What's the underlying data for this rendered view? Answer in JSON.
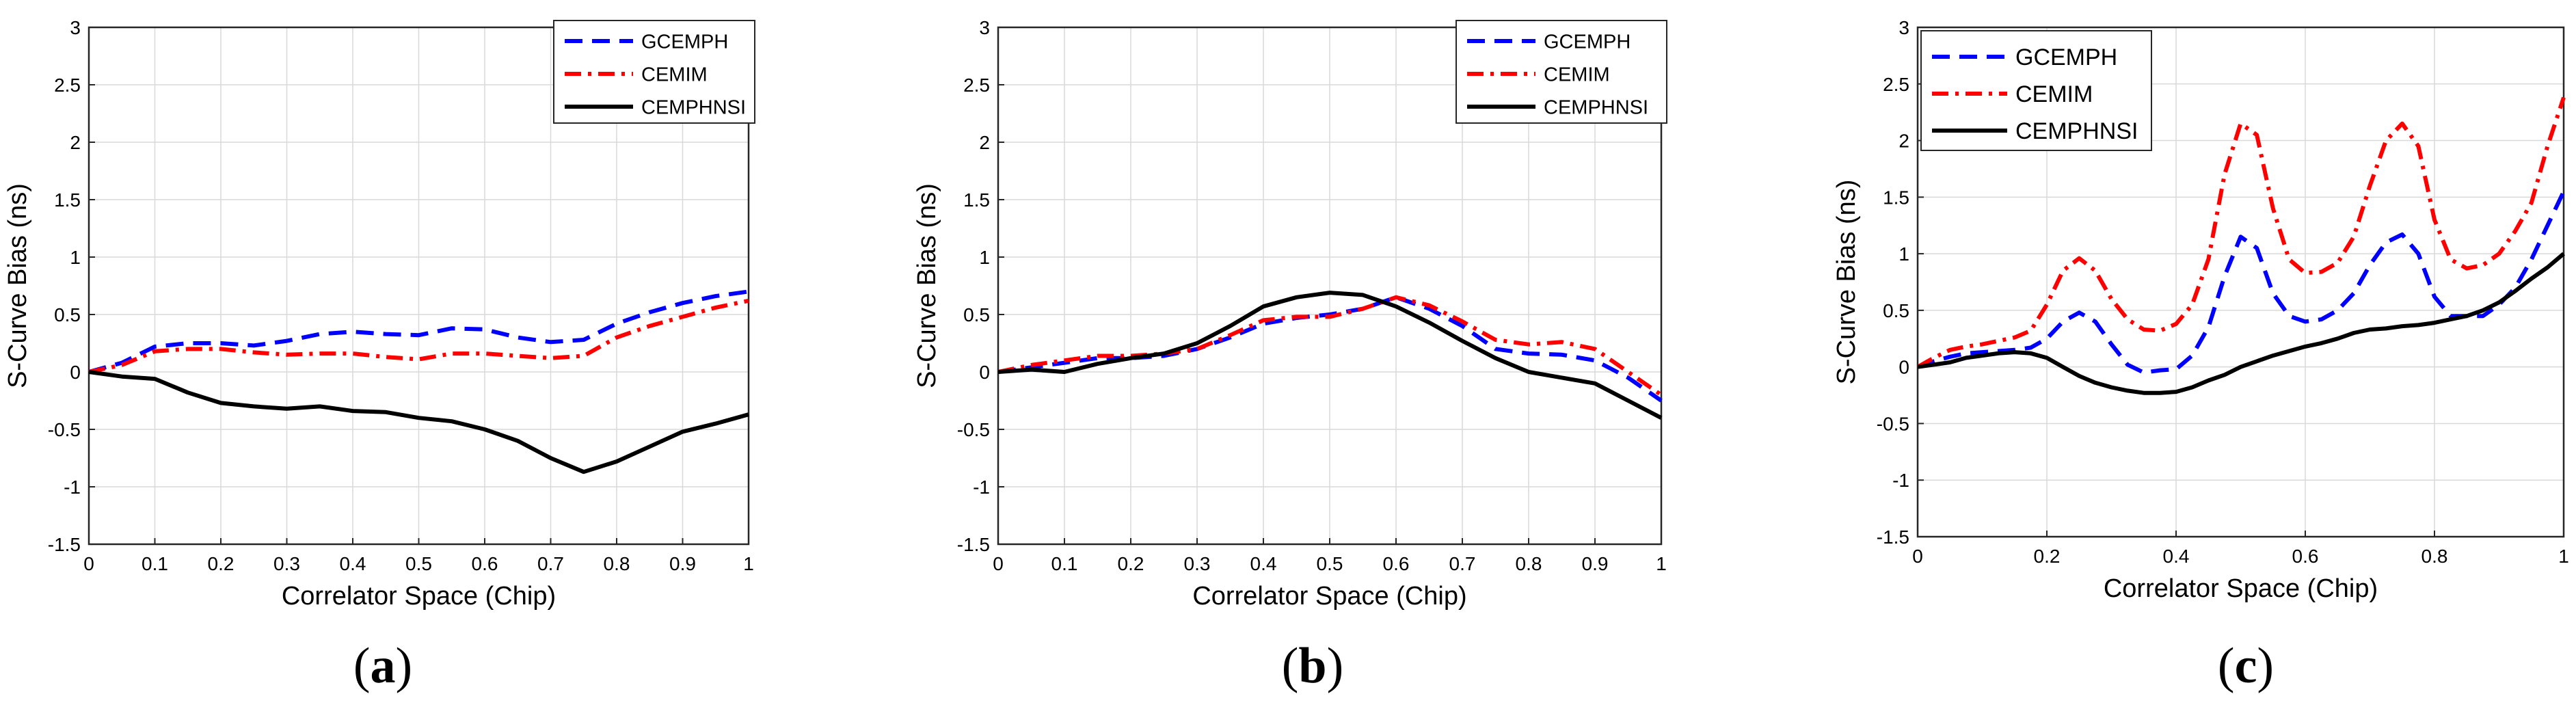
{
  "colors": {
    "series1": "#0000ff",
    "series2": "#ff0000",
    "series3": "#000000",
    "grid": "#d9d9d9",
    "axis": "#262626"
  },
  "chart_data": [
    {
      "type": "line",
      "caption": "a",
      "title": "",
      "xlabel": "Correlator Space (Chip)",
      "ylabel": "S-Curve Bias (ns)",
      "xlim": [
        0,
        1
      ],
      "ylim": [
        -1.5,
        3
      ],
      "xticks": [
        "0",
        "0.1",
        "0.2",
        "0.3",
        "0.4",
        "0.5",
        "0.6",
        "0.7",
        "0.8",
        "0.9",
        "1"
      ],
      "yticks": [
        "-1.5",
        "-1",
        "-0.5",
        "0",
        "0.5",
        "1",
        "1.5",
        "2",
        "2.5",
        "3"
      ],
      "grid": true,
      "legend_position": "top-right",
      "x": [
        0,
        0.05,
        0.1,
        0.15,
        0.2,
        0.25,
        0.3,
        0.35,
        0.4,
        0.45,
        0.5,
        0.55,
        0.6,
        0.65,
        0.7,
        0.75,
        0.8,
        0.85,
        0.9,
        0.95,
        1.0
      ],
      "series": [
        {
          "name": "GCEMPH",
          "style": "dashed",
          "values": [
            0,
            0.08,
            0.22,
            0.25,
            0.25,
            0.23,
            0.27,
            0.33,
            0.35,
            0.33,
            0.32,
            0.38,
            0.37,
            0.3,
            0.26,
            0.28,
            0.42,
            0.52,
            0.6,
            0.66,
            0.7
          ]
        },
        {
          "name": "CEMIM",
          "style": "dashdot",
          "values": [
            0,
            0.06,
            0.18,
            0.2,
            0.2,
            0.17,
            0.15,
            0.16,
            0.16,
            0.13,
            0.11,
            0.16,
            0.16,
            0.14,
            0.12,
            0.14,
            0.3,
            0.4,
            0.48,
            0.56,
            0.62
          ]
        },
        {
          "name": "CEMPHNSI",
          "style": "solid",
          "values": [
            0,
            -0.04,
            -0.06,
            -0.18,
            -0.27,
            -0.3,
            -0.32,
            -0.3,
            -0.34,
            -0.35,
            -0.4,
            -0.43,
            -0.5,
            -0.6,
            -0.75,
            -0.87,
            -0.78,
            -0.65,
            -0.52,
            -0.45,
            -0.37
          ]
        }
      ]
    },
    {
      "type": "line",
      "caption": "b",
      "title": "",
      "xlabel": "Correlator Space (Chip)",
      "ylabel": "S-Curve Bias (ns)",
      "xlim": [
        0,
        1
      ],
      "ylim": [
        -1.5,
        3
      ],
      "xticks": [
        "0",
        "0.1",
        "0.2",
        "0.3",
        "0.4",
        "0.5",
        "0.6",
        "0.7",
        "0.8",
        "0.9",
        "1"
      ],
      "yticks": [
        "-1.5",
        "-1",
        "-0.5",
        "0",
        "0.5",
        "1",
        "1.5",
        "2",
        "2.5",
        "3"
      ],
      "grid": true,
      "legend_position": "top-right",
      "x": [
        0,
        0.05,
        0.1,
        0.15,
        0.2,
        0.25,
        0.3,
        0.35,
        0.4,
        0.45,
        0.5,
        0.55,
        0.6,
        0.65,
        0.7,
        0.75,
        0.8,
        0.85,
        0.9,
        0.95,
        1.0
      ],
      "series": [
        {
          "name": "GCEMPH",
          "style": "dashed",
          "values": [
            0,
            0.04,
            0.08,
            0.12,
            0.12,
            0.14,
            0.2,
            0.3,
            0.42,
            0.47,
            0.5,
            0.55,
            0.65,
            0.55,
            0.4,
            0.2,
            0.16,
            0.15,
            0.1,
            -0.05,
            -0.25
          ]
        },
        {
          "name": "CEMIM",
          "style": "dashdot",
          "values": [
            0,
            0.06,
            0.1,
            0.14,
            0.14,
            0.16,
            0.2,
            0.32,
            0.45,
            0.48,
            0.48,
            0.55,
            0.65,
            0.58,
            0.44,
            0.28,
            0.24,
            0.26,
            0.2,
            0.0,
            -0.2
          ]
        },
        {
          "name": "CEMPHNSI",
          "style": "solid",
          "values": [
            0,
            0.02,
            0.0,
            0.07,
            0.12,
            0.16,
            0.25,
            0.4,
            0.57,
            0.65,
            0.69,
            0.67,
            0.57,
            0.43,
            0.27,
            0.12,
            0.0,
            -0.05,
            -0.1,
            -0.25,
            -0.4
          ]
        }
      ]
    },
    {
      "type": "line",
      "caption": "c",
      "title": "",
      "xlabel": "Correlator Space (Chip)",
      "ylabel": "S-Curve Bias (ns)",
      "xlim": [
        0,
        1
      ],
      "ylim": [
        -1.5,
        3
      ],
      "xticks": [
        "0",
        "0.2",
        "0.4",
        "0.6",
        "0.8",
        "1"
      ],
      "yticks": [
        "-1.5",
        "-1",
        "-0.5",
        "0",
        "0.5",
        "1",
        "1.5",
        "2",
        "2.5",
        "3"
      ],
      "grid": true,
      "legend_position": "top-left",
      "x": [
        0,
        0.025,
        0.05,
        0.075,
        0.1,
        0.125,
        0.15,
        0.175,
        0.2,
        0.225,
        0.25,
        0.275,
        0.3,
        0.325,
        0.35,
        0.375,
        0.4,
        0.425,
        0.45,
        0.475,
        0.5,
        0.525,
        0.55,
        0.575,
        0.6,
        0.625,
        0.65,
        0.675,
        0.7,
        0.725,
        0.75,
        0.775,
        0.8,
        0.825,
        0.85,
        0.875,
        0.9,
        0.925,
        0.95,
        0.975,
        1.0
      ],
      "series": [
        {
          "name": "GCEMPH",
          "style": "dashed",
          "values": [
            0,
            0.05,
            0.09,
            0.12,
            0.13,
            0.14,
            0.15,
            0.17,
            0.25,
            0.4,
            0.48,
            0.4,
            0.2,
            0.02,
            -0.05,
            -0.03,
            -0.02,
            0.1,
            0.35,
            0.8,
            1.15,
            1.05,
            0.65,
            0.45,
            0.4,
            0.42,
            0.5,
            0.65,
            0.9,
            1.1,
            1.17,
            1.0,
            0.62,
            0.45,
            0.45,
            0.45,
            0.55,
            0.7,
            0.95,
            1.25,
            1.55
          ]
        },
        {
          "name": "CEMIM",
          "style": "dashdot",
          "values": [
            0,
            0.08,
            0.15,
            0.18,
            0.2,
            0.23,
            0.26,
            0.32,
            0.55,
            0.85,
            0.96,
            0.85,
            0.6,
            0.42,
            0.33,
            0.32,
            0.38,
            0.55,
            0.95,
            1.7,
            2.15,
            2.05,
            1.4,
            0.95,
            0.83,
            0.84,
            0.92,
            1.15,
            1.6,
            2.0,
            2.15,
            1.95,
            1.3,
            0.95,
            0.87,
            0.9,
            1.0,
            1.2,
            1.45,
            1.95,
            2.38
          ]
        },
        {
          "name": "CEMPHNSI",
          "style": "solid",
          "values": [
            0,
            0.02,
            0.04,
            0.08,
            0.1,
            0.12,
            0.13,
            0.12,
            0.08,
            0.0,
            -0.08,
            -0.14,
            -0.18,
            -0.21,
            -0.23,
            -0.23,
            -0.22,
            -0.18,
            -0.12,
            -0.07,
            0.0,
            0.05,
            0.1,
            0.14,
            0.18,
            0.21,
            0.25,
            0.3,
            0.33,
            0.34,
            0.36,
            0.37,
            0.39,
            0.42,
            0.45,
            0.5,
            0.57,
            0.67,
            0.78,
            0.88,
            1.0
          ]
        }
      ]
    }
  ]
}
